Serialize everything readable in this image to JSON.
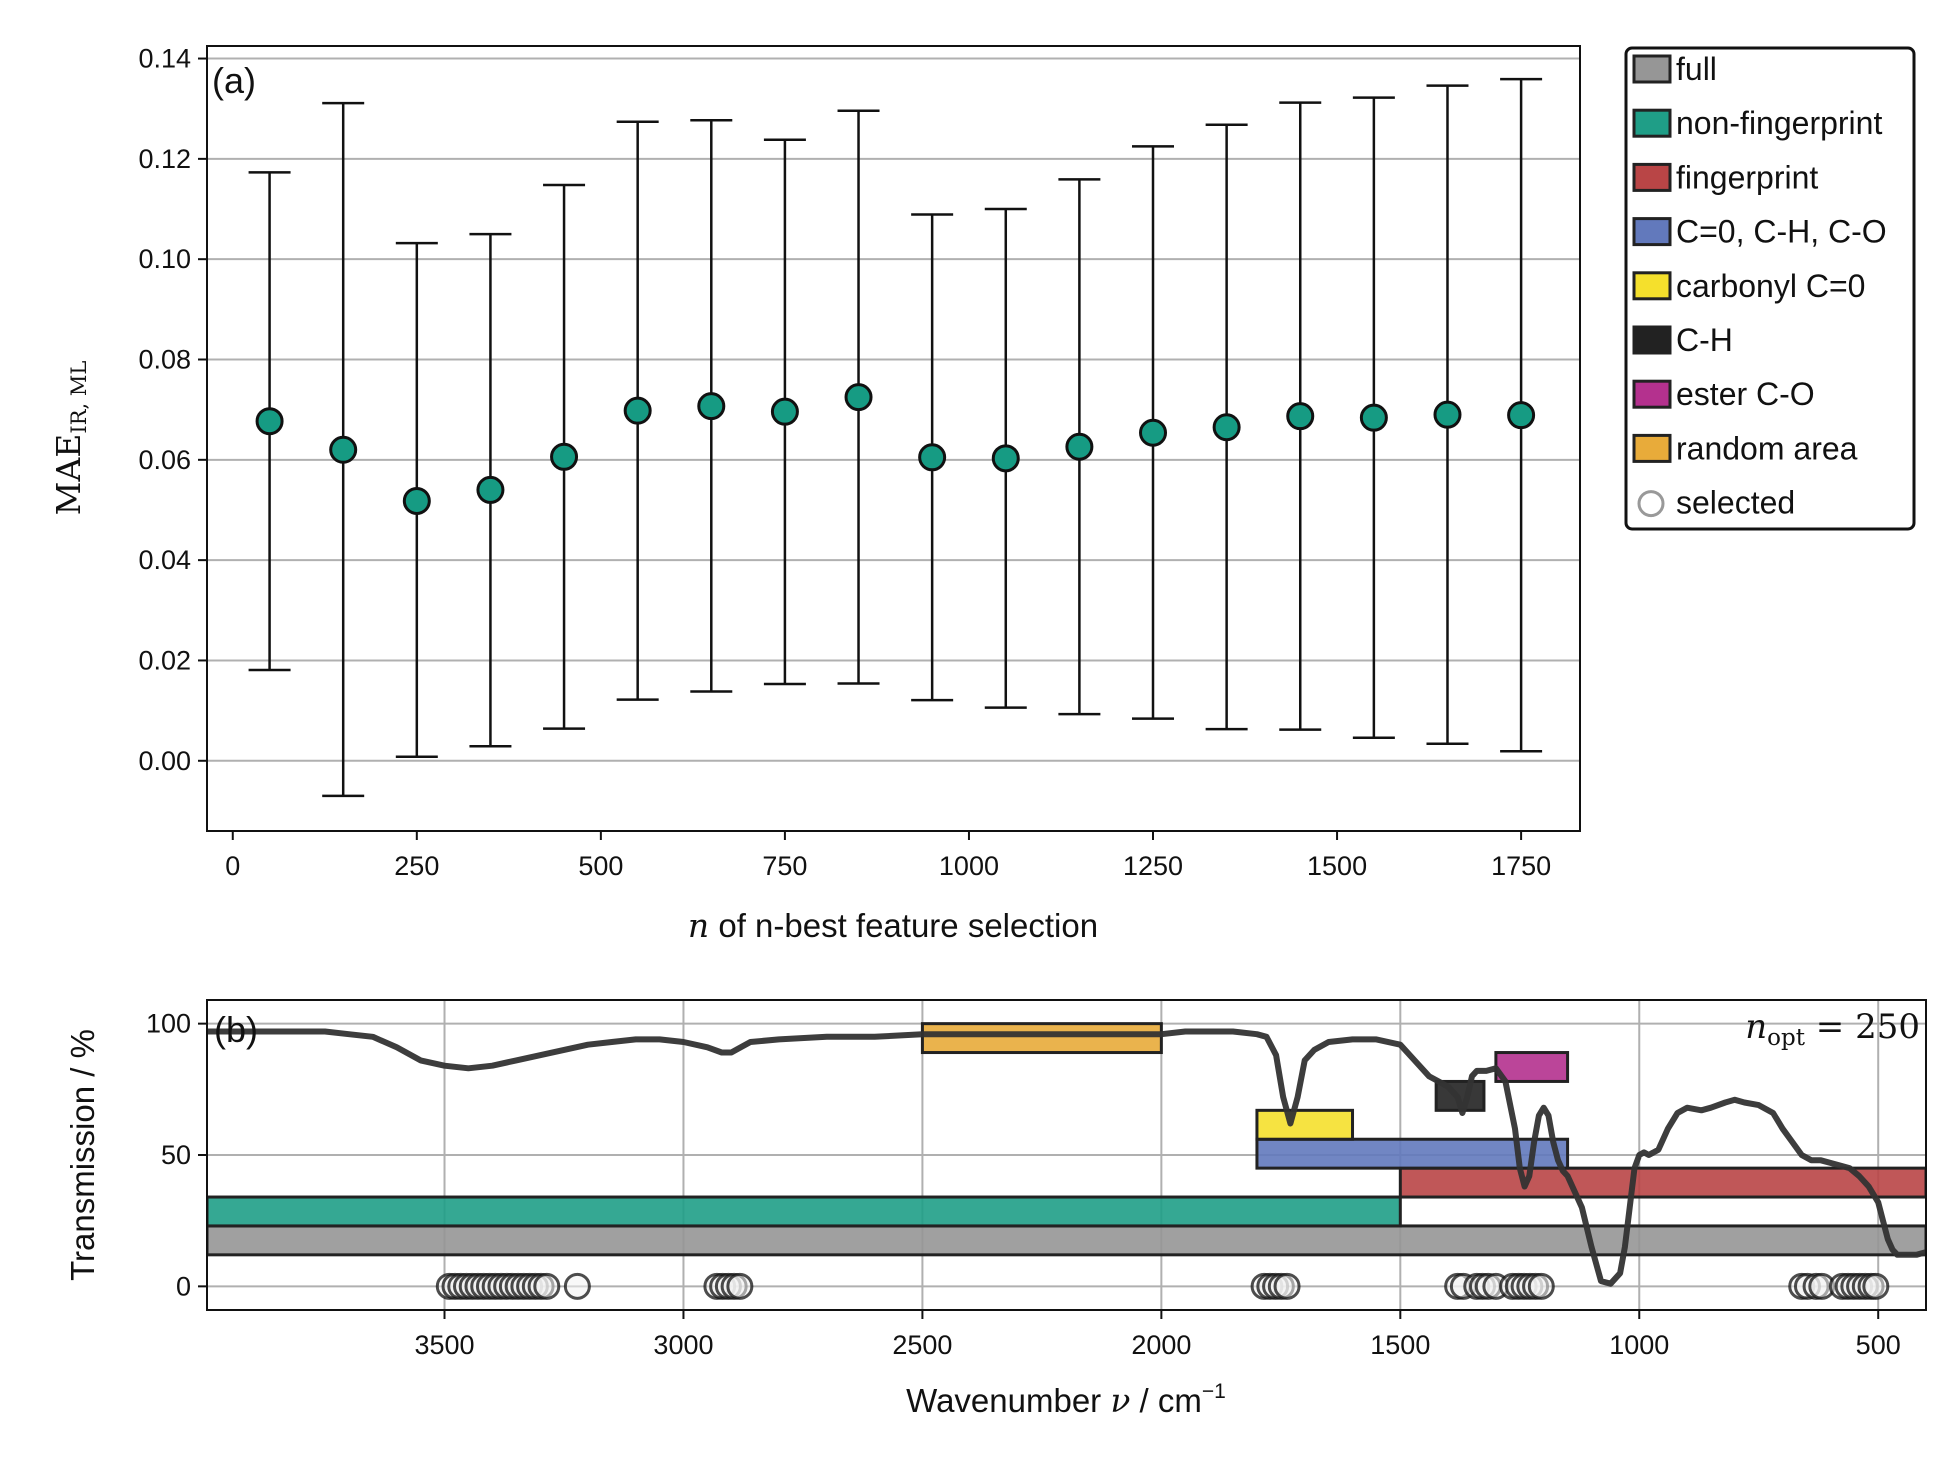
{
  "chart_data": [
    {
      "type": "scatter",
      "panel_label": "(a)",
      "xlabel": {
        "var": "n",
        "text": " of n-best feature selection"
      },
      "ylabel": {
        "main": "MAE",
        "sub": "IR, ML"
      },
      "xlim": [
        -35,
        1830
      ],
      "ylim": [
        -0.014,
        0.1425
      ],
      "xticks": [
        0,
        250,
        500,
        750,
        1000,
        1250,
        1500,
        1750
      ],
      "yticks": [
        0.0,
        0.02,
        0.04,
        0.06,
        0.08,
        0.1,
        0.12,
        0.14
      ],
      "ytick_labels": [
        "0.00",
        "0.02",
        "0.04",
        "0.06",
        "0.08",
        "0.10",
        "0.12",
        "0.14"
      ],
      "grid": "horizontal",
      "marker_color": "#169b83",
      "points": [
        {
          "x": 50,
          "y": 0.0677,
          "lo": 0.0181,
          "hi": 0.1173
        },
        {
          "x": 150,
          "y": 0.062,
          "lo": -0.007,
          "hi": 0.1311
        },
        {
          "x": 250,
          "y": 0.0518,
          "lo": 0.0008,
          "hi": 0.1032
        },
        {
          "x": 350,
          "y": 0.054,
          "lo": 0.0029,
          "hi": 0.105
        },
        {
          "x": 450,
          "y": 0.0606,
          "lo": 0.0064,
          "hi": 0.1148
        },
        {
          "x": 550,
          "y": 0.0698,
          "lo": 0.0122,
          "hi": 0.1274
        },
        {
          "x": 650,
          "y": 0.0707,
          "lo": 0.0138,
          "hi": 0.1277
        },
        {
          "x": 750,
          "y": 0.0696,
          "lo": 0.0153,
          "hi": 0.1238
        },
        {
          "x": 850,
          "y": 0.0725,
          "lo": 0.0154,
          "hi": 0.1296
        },
        {
          "x": 950,
          "y": 0.0605,
          "lo": 0.0121,
          "hi": 0.1089
        },
        {
          "x": 1050,
          "y": 0.0603,
          "lo": 0.0106,
          "hi": 0.11
        },
        {
          "x": 1150,
          "y": 0.0626,
          "lo": 0.0093,
          "hi": 0.1159
        },
        {
          "x": 1250,
          "y": 0.0654,
          "lo": 0.0084,
          "hi": 0.1225
        },
        {
          "x": 1350,
          "y": 0.0665,
          "lo": 0.0063,
          "hi": 0.1268
        },
        {
          "x": 1450,
          "y": 0.0687,
          "lo": 0.0062,
          "hi": 0.1312
        },
        {
          "x": 1550,
          "y": 0.0684,
          "lo": 0.0046,
          "hi": 0.1322
        },
        {
          "x": 1650,
          "y": 0.069,
          "lo": 0.0034,
          "hi": 0.1346
        },
        {
          "x": 1750,
          "y": 0.0689,
          "lo": 0.0019,
          "hi": 0.1359
        }
      ]
    },
    {
      "type": "line",
      "panel_label": "(b)",
      "xlabel": {
        "text": "Wavenumber ",
        "var": "ν",
        "unit": " / cm",
        "sup": "−1"
      },
      "ylabel": "Transmission / %",
      "annotation": {
        "var": "n",
        "sub": "opt",
        "text": " = 250"
      },
      "xlim": [
        3997,
        400
      ],
      "x_reversed": true,
      "ylim": [
        -9,
        109
      ],
      "xticks": [
        3500,
        3000,
        2500,
        2000,
        1500,
        1000,
        500
      ],
      "yticks": [
        0,
        50,
        100
      ],
      "grid": "both",
      "spectrum": {
        "color": "#333333",
        "x": [
          3997,
          3900,
          3850,
          3800,
          3750,
          3700,
          3650,
          3600,
          3550,
          3500,
          3450,
          3400,
          3350,
          3300,
          3250,
          3200,
          3150,
          3100,
          3050,
          3000,
          2950,
          2920,
          2900,
          2880,
          2860,
          2800,
          2700,
          2600,
          2500,
          2400,
          2300,
          2200,
          2100,
          2000,
          1950,
          1900,
          1850,
          1800,
          1780,
          1760,
          1745,
          1730,
          1715,
          1700,
          1680,
          1650,
          1600,
          1550,
          1500,
          1470,
          1440,
          1420,
          1400,
          1380,
          1370,
          1360,
          1350,
          1340,
          1320,
          1300,
          1280,
          1260,
          1250,
          1240,
          1230,
          1220,
          1210,
          1200,
          1190,
          1180,
          1170,
          1160,
          1150,
          1120,
          1100,
          1080,
          1060,
          1040,
          1030,
          1020,
          1010,
          1000,
          990,
          980,
          960,
          940,
          920,
          900,
          870,
          850,
          820,
          800,
          780,
          750,
          720,
          700,
          680,
          660,
          640,
          620,
          600,
          580,
          560,
          540,
          520,
          500,
          490,
          480,
          470,
          460,
          450,
          440,
          420,
          400
        ],
        "y": [
          97,
          97,
          97,
          97,
          97,
          96,
          95,
          91,
          86,
          84,
          83,
          84,
          86,
          88,
          90,
          92,
          93,
          94,
          94,
          93,
          91,
          89,
          89,
          91,
          93,
          94,
          95,
          95,
          96,
          96,
          96,
          96,
          96,
          96,
          97,
          97,
          97,
          96,
          95,
          88,
          72,
          62,
          72,
          86,
          90,
          93,
          94,
          94,
          92,
          86,
          80,
          78,
          76,
          72,
          66,
          72,
          80,
          82,
          82,
          83,
          78,
          60,
          45,
          38,
          42,
          55,
          65,
          68,
          65,
          55,
          48,
          44,
          42,
          30,
          15,
          2,
          1,
          5,
          15,
          30,
          45,
          50,
          51,
          50,
          52,
          60,
          66,
          68,
          67,
          68,
          70,
          71,
          70,
          69,
          66,
          60,
          55,
          50,
          48,
          48,
          47,
          46,
          45,
          42,
          38,
          32,
          25,
          18,
          14,
          12,
          12,
          12,
          12,
          13
        ]
      },
      "bands": [
        {
          "name": "random area",
          "color": "#e8ab3a",
          "x0": 2500,
          "x1": 2000,
          "y0": 89,
          "y1": 100
        },
        {
          "name": "ester C-O",
          "color": "#b4318e",
          "x0": 1300,
          "x1": 1150,
          "y0": 78,
          "y1": 89
        },
        {
          "name": "C-H",
          "color": "#222222",
          "x0": 1425,
          "x1": 1325,
          "y0": 67,
          "y1": 78
        },
        {
          "name": "carbonyl C=0",
          "color": "#f5e02c",
          "x0": 1800,
          "x1": 1600,
          "y0": 56,
          "y1": 67
        },
        {
          "name": "C=0, C-H, C-O",
          "color": "#6279bc",
          "x0": 1800,
          "x1": 1150,
          "y0": 45,
          "y1": 56
        },
        {
          "name": "fingerprint",
          "color": "#b94546",
          "x0": 1500,
          "x1": 400,
          "y0": 34,
          "y1": 45
        },
        {
          "name": "non-fingerprint",
          "color": "#1f9e87",
          "x0": 3997,
          "x1": 1500,
          "y0": 23,
          "y1": 34
        },
        {
          "name": "full",
          "color": "#969696",
          "x0": 3997,
          "x1": 400,
          "y0": 12,
          "y1": 23
        }
      ],
      "selected_points": {
        "y": 0,
        "x": [
          3490,
          3478,
          3466,
          3454,
          3442,
          3430,
          3418,
          3406,
          3394,
          3382,
          3370,
          3358,
          3346,
          3334,
          3322,
          3310,
          3298,
          3286,
          3222,
          2930,
          2918,
          2906,
          2894,
          2882,
          1785,
          1773,
          1761,
          1749,
          1737,
          1380,
          1368,
          1340,
          1328,
          1316,
          1300,
          1265,
          1253,
          1241,
          1229,
          1217,
          1205,
          660,
          648,
          630,
          618,
          575,
          563,
          551,
          539,
          527,
          515,
          505
        ]
      }
    }
  ],
  "legend": {
    "position": "right of top panel",
    "entries": [
      {
        "label": "full",
        "color": "#969696",
        "kind": "patch"
      },
      {
        "label": "non-fingerprint",
        "color": "#1f9e87",
        "kind": "patch"
      },
      {
        "label": "fingerprint",
        "color": "#b94546",
        "kind": "patch"
      },
      {
        "label": "C=0, C-H, C-O",
        "color": "#6279bc",
        "kind": "patch"
      },
      {
        "label": "carbonyl C=0",
        "color": "#f5e02c",
        "kind": "patch"
      },
      {
        "label": "C-H",
        "color": "#222222",
        "kind": "patch"
      },
      {
        "label": "ester C-O",
        "color": "#b4318e",
        "kind": "patch"
      },
      {
        "label": "random area",
        "color": "#e8ab3a",
        "kind": "patch"
      },
      {
        "label": "selected",
        "color": "#999999",
        "kind": "circle"
      }
    ]
  }
}
